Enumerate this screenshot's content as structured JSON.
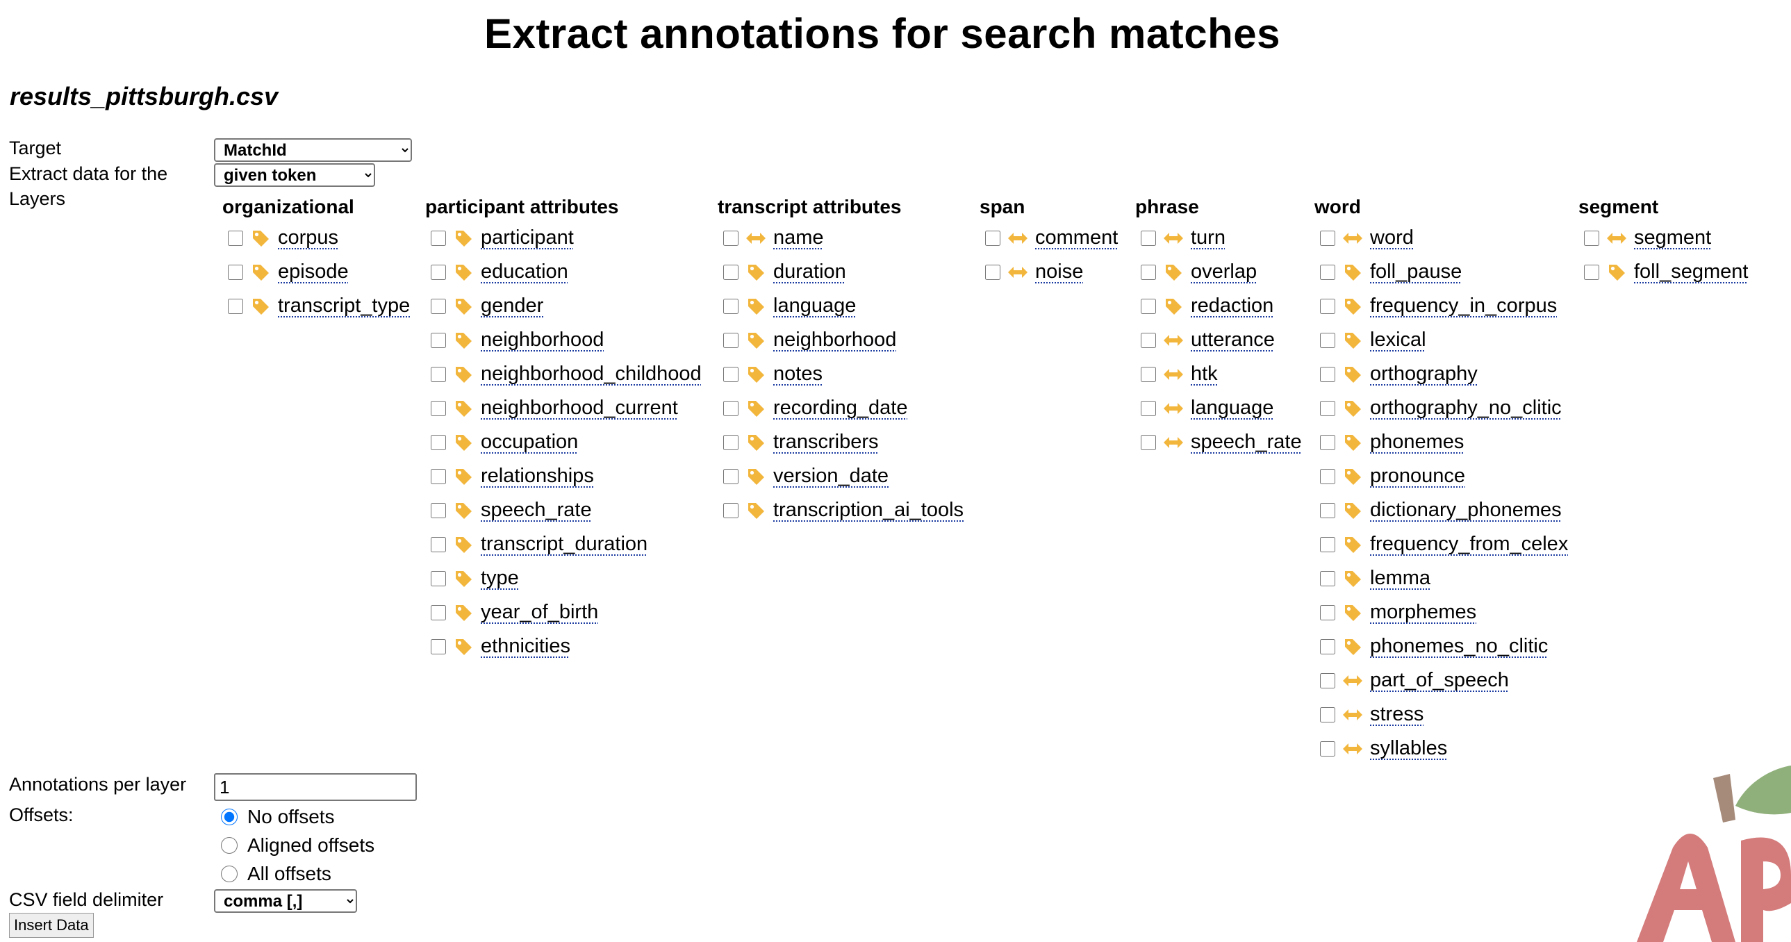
{
  "page": {
    "title": "Extract annotations for search matches",
    "filename": "results_pittsburgh.csv"
  },
  "form": {
    "target_label": "Target",
    "target_value": "MatchId",
    "extract_label": "Extract data for the",
    "extract_value": "given token",
    "layers_label": "Layers",
    "annotations_label": "Annotations per layer",
    "annotations_value": "1",
    "offsets_label": "Offsets:",
    "offset_options": [
      "No offsets",
      "Aligned offsets",
      "All offsets"
    ],
    "offset_selected": "No offsets",
    "delimiter_label": "CSV field delimiter",
    "delimiter_value": "comma [,]",
    "insert_label": "Insert Data"
  },
  "colors": {
    "icon": "#f2b63d",
    "logo_letter": "#d47b7b",
    "logo_stem": "#a68a7a",
    "logo_leaf": "#8fb07a"
  },
  "layer_groups": [
    {
      "heading": "organizational",
      "items": [
        {
          "label": "corpus",
          "icon": "tag-icon"
        },
        {
          "label": "episode",
          "icon": "tag-icon"
        },
        {
          "label": "transcript_type",
          "icon": "tag-icon"
        }
      ]
    },
    {
      "heading": "participant attributes",
      "items": [
        {
          "label": "participant",
          "icon": "tag-icon"
        },
        {
          "label": "education",
          "icon": "tag-icon"
        },
        {
          "label": "gender",
          "icon": "tag-icon"
        },
        {
          "label": "neighborhood",
          "icon": "tag-icon"
        },
        {
          "label": "neighborhood_childhood",
          "icon": "tag-icon"
        },
        {
          "label": "neighborhood_current",
          "icon": "tag-icon"
        },
        {
          "label": "occupation",
          "icon": "tag-icon"
        },
        {
          "label": "relationships",
          "icon": "tag-icon"
        },
        {
          "label": "speech_rate",
          "icon": "tag-icon"
        },
        {
          "label": "transcript_duration",
          "icon": "tag-icon"
        },
        {
          "label": "type",
          "icon": "tag-icon"
        },
        {
          "label": "year_of_birth",
          "icon": "tag-icon"
        },
        {
          "label": "ethnicities",
          "icon": "tag-icon"
        }
      ]
    },
    {
      "heading": "transcript attributes",
      "items": [
        {
          "label": "name",
          "icon": "interval-icon"
        },
        {
          "label": "duration",
          "icon": "tag-icon"
        },
        {
          "label": "language",
          "icon": "tag-icon"
        },
        {
          "label": "neighborhood",
          "icon": "tag-icon"
        },
        {
          "label": "notes",
          "icon": "tag-icon"
        },
        {
          "label": "recording_date",
          "icon": "tag-icon"
        },
        {
          "label": "transcribers",
          "icon": "tag-icon"
        },
        {
          "label": "version_date",
          "icon": "tag-icon"
        },
        {
          "label": "transcription_ai_tools",
          "icon": "tag-icon"
        }
      ]
    },
    {
      "heading": "span",
      "items": [
        {
          "label": "comment",
          "icon": "interval-icon"
        },
        {
          "label": "noise",
          "icon": "interval-icon"
        }
      ]
    },
    {
      "heading": "phrase",
      "items": [
        {
          "label": "turn",
          "icon": "interval-icon"
        },
        {
          "label": "overlap",
          "icon": "tag-icon"
        },
        {
          "label": "redaction",
          "icon": "tag-icon"
        },
        {
          "label": "utterance",
          "icon": "interval-icon"
        },
        {
          "label": "htk",
          "icon": "interval-icon"
        },
        {
          "label": "language",
          "icon": "interval-icon"
        },
        {
          "label": "speech_rate",
          "icon": "interval-icon"
        }
      ]
    },
    {
      "heading": "word",
      "items": [
        {
          "label": "word",
          "icon": "interval-icon"
        },
        {
          "label": "foll_pause",
          "icon": "tag-icon"
        },
        {
          "label": "frequency_in_corpus",
          "icon": "tag-icon"
        },
        {
          "label": "lexical",
          "icon": "tag-icon"
        },
        {
          "label": "orthography",
          "icon": "tag-icon"
        },
        {
          "label": "orthography_no_clitic",
          "icon": "tag-icon"
        },
        {
          "label": "phonemes",
          "icon": "tag-icon"
        },
        {
          "label": "pronounce",
          "icon": "tag-icon"
        },
        {
          "label": "dictionary_phonemes",
          "icon": "tag-icon"
        },
        {
          "label": "frequency_from_celex",
          "icon": "tag-icon"
        },
        {
          "label": "lemma",
          "icon": "tag-icon"
        },
        {
          "label": "morphemes",
          "icon": "tag-icon"
        },
        {
          "label": "phonemes_no_clitic",
          "icon": "tag-icon"
        },
        {
          "label": "part_of_speech",
          "icon": "interval-icon"
        },
        {
          "label": "stress",
          "icon": "interval-icon"
        },
        {
          "label": "syllables",
          "icon": "interval-icon"
        }
      ]
    },
    {
      "heading": "segment",
      "items": [
        {
          "label": "segment",
          "icon": "interval-icon"
        },
        {
          "label": "foll_segment",
          "icon": "tag-icon"
        }
      ]
    }
  ]
}
